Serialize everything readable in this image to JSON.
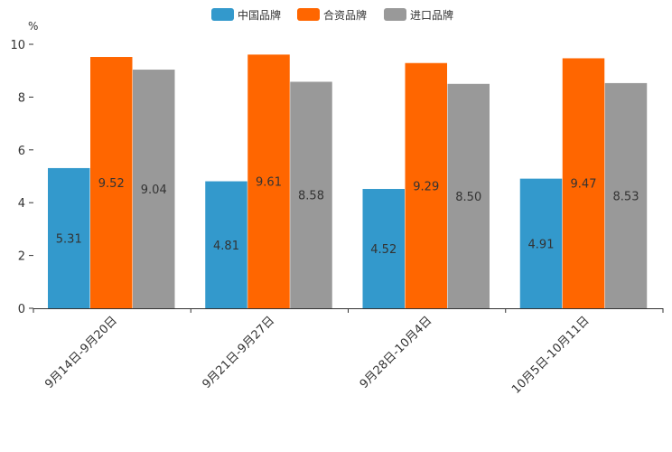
{
  "chart_data": {
    "type": "bar",
    "title": "",
    "ylabel": "%",
    "xlabel": "",
    "ylim": [
      0,
      10
    ],
    "yticks": [
      0,
      2,
      4,
      6,
      8,
      10
    ],
    "grid": false,
    "legend_position": "top-center",
    "categories": [
      "9月14日-9月20日",
      "9月21日-9月27日",
      "9月28日-10月4日",
      "10月5日-10月11日"
    ],
    "series": [
      {
        "name": "中国品牌",
        "color": "#3399cc",
        "values": [
          5.31,
          4.81,
          4.52,
          4.91
        ]
      },
      {
        "name": "合资品牌",
        "color": "#ff6600",
        "values": [
          9.52,
          9.61,
          9.29,
          9.47
        ]
      },
      {
        "name": "进口品牌",
        "color": "#999999",
        "values": [
          9.04,
          8.58,
          8.5,
          8.53
        ]
      }
    ]
  }
}
